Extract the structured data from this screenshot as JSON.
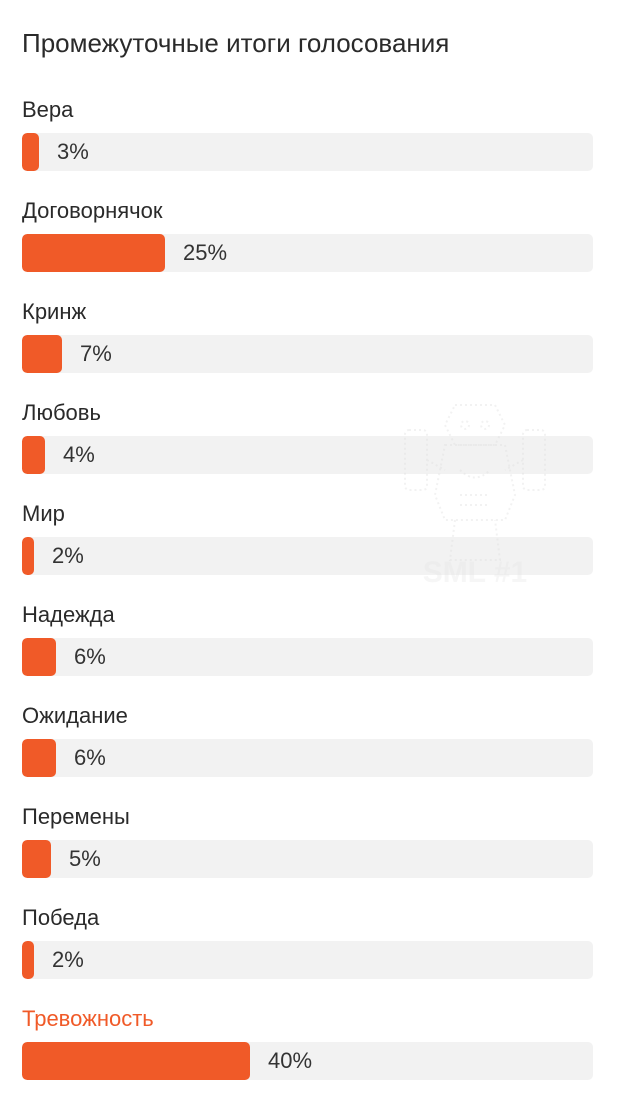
{
  "poll": {
    "title": "Промежуточные итоги голосования",
    "accent_color": "#f05a28",
    "track_color": "#f2f2f2",
    "options": [
      {
        "label": "Вера",
        "percent_text": "3%",
        "value": 3,
        "selected": false
      },
      {
        "label": "Договорнячок",
        "percent_text": "25%",
        "value": 25,
        "selected": false
      },
      {
        "label": "Кринж",
        "percent_text": "7%",
        "value": 7,
        "selected": false
      },
      {
        "label": "Любовь",
        "percent_text": "4%",
        "value": 4,
        "selected": false
      },
      {
        "label": "Мир",
        "percent_text": "2%",
        "value": 2,
        "selected": false
      },
      {
        "label": "Надежда",
        "percent_text": "6%",
        "value": 6,
        "selected": false
      },
      {
        "label": "Ожидание",
        "percent_text": "6%",
        "value": 6,
        "selected": false
      },
      {
        "label": "Перемены",
        "percent_text": "5%",
        "value": 5,
        "selected": false
      },
      {
        "label": "Победа",
        "percent_text": "2%",
        "value": 2,
        "selected": false
      },
      {
        "label": "Тревожность",
        "percent_text": "40%",
        "value": 40,
        "selected": true
      }
    ]
  },
  "watermark": {
    "text": "SML #1",
    "icon": "totem-logo-icon"
  }
}
